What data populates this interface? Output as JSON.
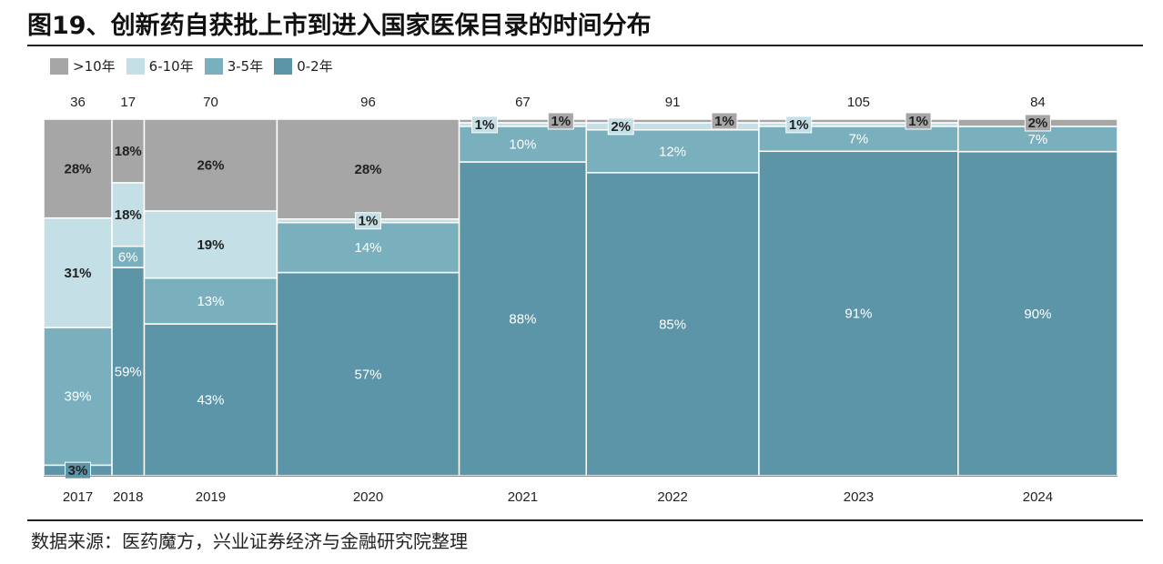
{
  "title": "图19、创新药自获批上市到进入国家医保目录的时间分布",
  "source": "数据来源：医药魔方，兴业证券经济与金融研究院整理",
  "chart_data": {
    "type": "bar",
    "subtype": "marimekko-100pct-stacked",
    "categories": [
      "2017",
      "2018",
      "2019",
      "2020",
      "2021",
      "2022",
      "2023",
      "2024"
    ],
    "totals": [
      36,
      17,
      70,
      96,
      67,
      91,
      105,
      84
    ],
    "series": [
      {
        "name": "0-2年",
        "color": "#5c95a8",
        "values": [
          3,
          59,
          43,
          57,
          88,
          85,
          91,
          90
        ]
      },
      {
        "name": "3-5年",
        "color": "#7aafbe",
        "values": [
          39,
          6,
          13,
          14,
          10,
          12,
          7,
          7
        ]
      },
      {
        "name": "6-10年",
        "color": "#c4dfe5",
        "values": [
          31,
          18,
          19,
          1,
          1,
          2,
          1,
          0
        ]
      },
      {
        "name": ">10年",
        "color": "#a6a6a6",
        "values": [
          28,
          18,
          26,
          28,
          1,
          1,
          1,
          2
        ]
      }
    ],
    "legend_order": [
      ">10年",
      "6-10年",
      "3-5年",
      "0-2年"
    ],
    "legend_position": "top-left",
    "ylim": [
      0,
      100
    ],
    "grid": false
  }
}
